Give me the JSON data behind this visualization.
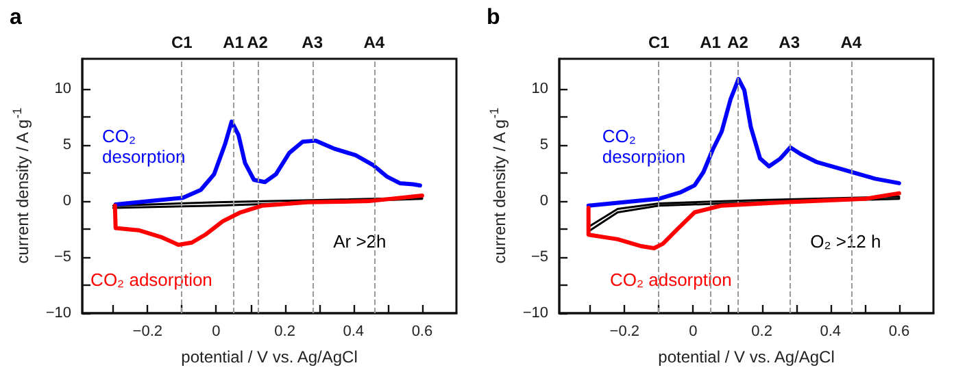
{
  "chart_data": [
    {
      "type": "line",
      "title": "a",
      "xlabel": "potential / V vs. Ag/AgCl",
      "ylabel": "current density / A g$^{-1}$",
      "xlim": [
        -0.39,
        0.7
      ],
      "ylim": [
        -10,
        12.7
      ],
      "xticks": [
        {
          "value": -0.3,
          "label": null
        },
        {
          "value": -0.2,
          "label": "−0.2"
        },
        {
          "value": -0.1,
          "label": null
        },
        0.0,
        {
          "value": 0.1,
          "label": null
        },
        0.2,
        {
          "value": 0.3,
          "label": null
        },
        0.4,
        {
          "value": 0.5,
          "label": null
        },
        0.6
      ],
      "yticks": [
        {
          "value": -10,
          "label": "−10"
        },
        {
          "value": -7.5,
          "label": null
        },
        {
          "value": -5,
          "label": "−5"
        },
        {
          "value": -2.5,
          "label": null
        },
        0,
        {
          "value": 2.5,
          "label": null
        },
        5,
        {
          "value": 7.5,
          "label": null
        },
        10
      ],
      "marker": "none",
      "line_style": "solid",
      "legend": false,
      "grid": false,
      "ref_lines": [
        {
          "axis": "x",
          "value": -0.1,
          "label": "C1",
          "color": "#999999",
          "line_style": "dashed"
        },
        {
          "axis": "x",
          "value": 0.05,
          "label": "A1",
          "color": "#999999",
          "line_style": "dashed"
        },
        {
          "axis": "x",
          "value": 0.12,
          "label": "A2",
          "color": "#999999",
          "line_style": "dashed"
        },
        {
          "axis": "x",
          "value": 0.28,
          "label": "A3",
          "color": "#999999",
          "line_style": "dashed"
        },
        {
          "axis": "x",
          "value": 0.46,
          "label": "A4",
          "color": "#999999",
          "line_style": "dashed"
        }
      ],
      "series": [
        {
          "name": "Ar >2h",
          "color": "#000000",
          "x": [
            -0.3,
            0.0,
            0.3,
            0.6,
            0.6,
            0.3,
            0.0,
            -0.3
          ],
          "values": [
            -0.6,
            -0.4,
            -0.1,
            0.2,
            0.3,
            0.1,
            -0.1,
            -0.4
          ]
        },
        {
          "name": "CO₂ desorption",
          "color": "#0000ff",
          "x": [
            -0.293,
            -0.097,
            -0.045,
            -0.006,
            0.026,
            0.045,
            0.065,
            0.084,
            0.11,
            0.142,
            0.174,
            0.213,
            0.252,
            0.29,
            0.342,
            0.406,
            0.458,
            0.497,
            0.535,
            0.574,
            0.594
          ],
          "values": [
            -0.3,
            0.3,
            1.0,
            2.4,
            5.1,
            7.1,
            5.9,
            3.4,
            1.9,
            1.7,
            2.4,
            4.3,
            5.3,
            5.4,
            4.7,
            4.1,
            3.2,
            2.2,
            1.6,
            1.5,
            1.4
          ]
        },
        {
          "name": "CO₂ adsorption",
          "color": "#ff0000",
          "x": [
            0.6,
            0.445,
            0.265,
            0.135,
            0.071,
            0.019,
            -0.032,
            -0.071,
            -0.11,
            -0.161,
            -0.226,
            -0.293,
            -0.295
          ],
          "values": [
            0.5,
            0.0,
            -0.1,
            -0.4,
            -1.0,
            -1.8,
            -3.0,
            -3.7,
            -3.9,
            -3.2,
            -2.6,
            -2.4,
            -0.4
          ]
        }
      ]
    },
    {
      "type": "line",
      "title": "b",
      "xlabel": "potential / V vs. Ag/AgCl",
      "ylabel": "current density / A g$^{-1}$",
      "xlim": [
        -0.39,
        0.7
      ],
      "ylim": [
        -10,
        12.7
      ],
      "xticks": [
        {
          "value": -0.3,
          "label": null
        },
        {
          "value": -0.2,
          "label": "−0.2"
        },
        {
          "value": -0.1,
          "label": null
        },
        0.0,
        {
          "value": 0.1,
          "label": null
        },
        0.2,
        {
          "value": 0.3,
          "label": null
        },
        0.4,
        {
          "value": 0.5,
          "label": null
        },
        0.6
      ],
      "yticks": [
        {
          "value": -10,
          "label": "−10"
        },
        {
          "value": -7.5,
          "label": null
        },
        {
          "value": -5,
          "label": "−5"
        },
        {
          "value": -2.5,
          "label": null
        },
        0,
        {
          "value": 2.5,
          "label": null
        },
        5,
        {
          "value": 7.5,
          "label": null
        },
        10
      ],
      "marker": "none",
      "line_style": "solid",
      "legend": false,
      "grid": false,
      "ref_lines": [
        {
          "axis": "x",
          "value": -0.1,
          "label": "C1",
          "color": "#999999",
          "line_style": "dashed"
        },
        {
          "axis": "x",
          "value": 0.05,
          "label": "A1",
          "color": "#999999",
          "line_style": "dashed"
        },
        {
          "axis": "x",
          "value": 0.13,
          "label": "A2",
          "color": "#999999",
          "line_style": "dashed"
        },
        {
          "axis": "x",
          "value": 0.28,
          "label": "A3",
          "color": "#999999",
          "line_style": "dashed"
        },
        {
          "axis": "x",
          "value": 0.46,
          "label": "A4",
          "color": "#999999",
          "line_style": "dashed"
        }
      ],
      "series": [
        {
          "name": "O₂ >12 h",
          "color": "#000000",
          "x": [
            -0.3,
            -0.22,
            -0.1,
            0.2,
            0.6,
            0.6,
            0.2,
            -0.1,
            -0.22,
            -0.3
          ],
          "values": [
            -2.6,
            -1.0,
            -0.4,
            -0.1,
            0.2,
            0.4,
            0.1,
            -0.2,
            -0.7,
            -2.2
          ]
        },
        {
          "name": "CO₂ desorption",
          "color": "#0000ff",
          "x": [
            -0.305,
            -0.101,
            -0.036,
            0.004,
            0.03,
            0.057,
            0.083,
            0.109,
            0.132,
            0.149,
            0.168,
            0.195,
            0.221,
            0.254,
            0.283,
            0.313,
            0.359,
            0.438,
            0.53,
            0.6
          ],
          "values": [
            -0.4,
            0.2,
            0.8,
            1.4,
            2.6,
            4.6,
            6.2,
            9.1,
            10.9,
            9.9,
            6.6,
            3.8,
            3.1,
            3.8,
            4.8,
            4.2,
            3.5,
            2.8,
            2.0,
            1.6
          ]
        },
        {
          "name": "CO₂ adsorption",
          "color": "#ff0000",
          "x": [
            0.6,
            0.5,
            0.267,
            0.083,
            0.004,
            -0.049,
            -0.088,
            -0.114,
            -0.154,
            -0.22,
            -0.305,
            -0.305
          ],
          "values": [
            0.7,
            0.2,
            -0.1,
            -0.4,
            -1.0,
            -2.6,
            -3.8,
            -4.2,
            -4.0,
            -3.4,
            -3.0,
            -0.6
          ]
        }
      ]
    }
  ]
}
